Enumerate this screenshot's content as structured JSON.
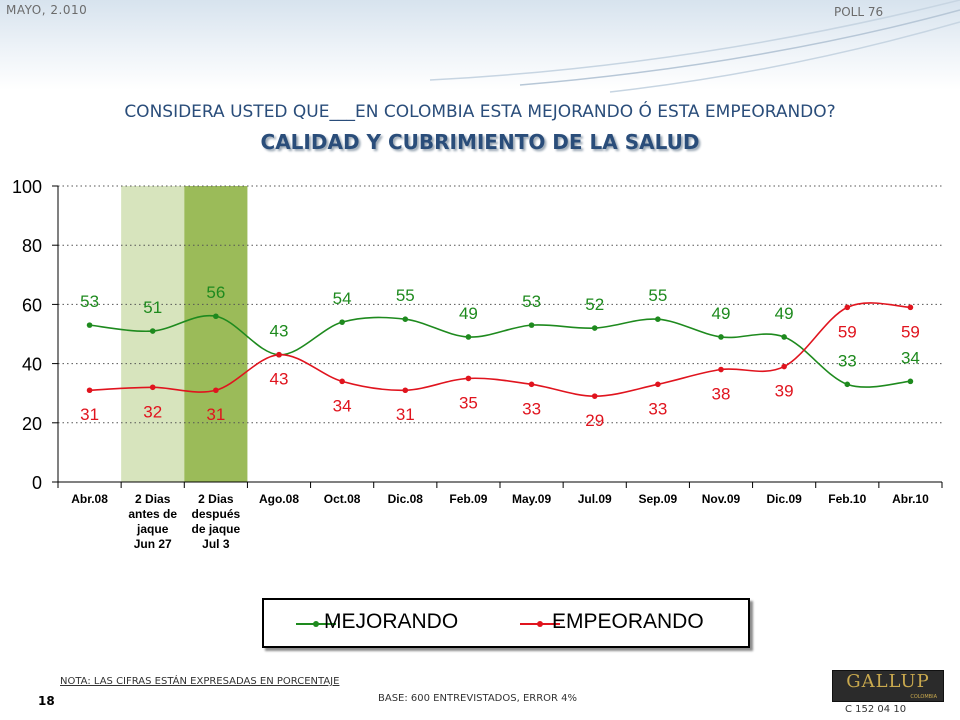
{
  "header": {
    "date": "MAYO, 2.010",
    "poll": "POLL 76"
  },
  "question": "CONSIDERA USTED QUE___EN COLOMBIA ESTA MEJORANDO Ó ESTA EMPEORANDO?",
  "chart_data": {
    "type": "line",
    "title": "CALIDAD Y CUBRIMIENTO DE LA SALUD",
    "xlabel": "",
    "ylabel": "",
    "ylim": [
      0,
      100
    ],
    "yticks": [
      0,
      20,
      40,
      60,
      80,
      100
    ],
    "grid": "horizontal-dotted",
    "categories": [
      "Abr.08",
      [
        "2 Dias",
        "antes de",
        "jaque",
        "Jun 27"
      ],
      [
        "2 Dias",
        "después",
        "de jaque",
        "Jul 3"
      ],
      "Ago.08",
      "Oct.08",
      "Dic.08",
      "Feb.09",
      "May.09",
      "Jul.09",
      "Sep.09",
      "Nov.09",
      "Dic.09",
      "Feb.10",
      "Abr.10"
    ],
    "highlight_bands": [
      {
        "category_index": 1,
        "color": "#d7e4bd"
      },
      {
        "category_index": 2,
        "color": "#9bbb59"
      }
    ],
    "series": [
      {
        "name": "MEJORANDO",
        "color": "#1e8a1e",
        "label_position": "above",
        "values": [
          53,
          51,
          56,
          43,
          54,
          55,
          49,
          53,
          52,
          55,
          49,
          49,
          33,
          34
        ]
      },
      {
        "name": "EMPEORANDO",
        "color": "#e0141e",
        "label_position": "below",
        "values": [
          31,
          32,
          31,
          43,
          34,
          31,
          35,
          33,
          29,
          33,
          38,
          39,
          59,
          59
        ]
      }
    ],
    "legend_placement": "bottom"
  },
  "footer": {
    "note": "NOTA: LAS CIFRAS ESTÁN EXPRESADAS EN PORCENTAJE",
    "base": "BASE: 600 ENTREVISTADOS, ERROR 4%",
    "page_number": "18",
    "code": "C 152 04 10",
    "logo_text": "GALLUP",
    "logo_sub": "COLOMBIA"
  }
}
